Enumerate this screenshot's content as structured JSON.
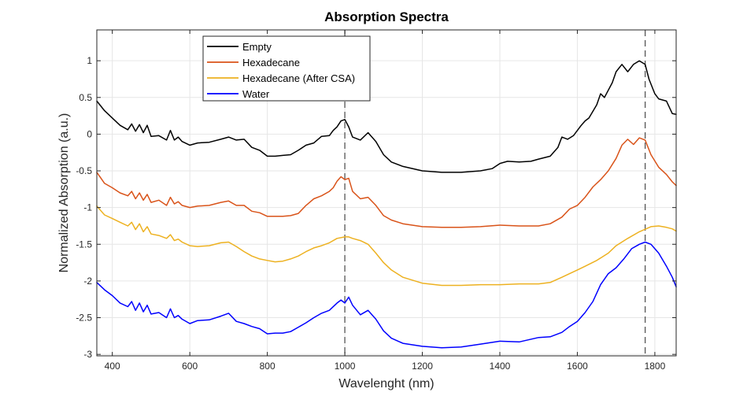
{
  "chart_data": {
    "type": "line",
    "title": "Absorption Spectra",
    "xlabel": "Wavelenght (nm)",
    "ylabel": "Normalized Absorption (a.u.)",
    "xlim": [
      360,
      1855
    ],
    "ylim": [
      -3.02,
      1.42
    ],
    "xticks": [
      400,
      600,
      800,
      1000,
      1200,
      1400,
      1600,
      1800
    ],
    "yticks": [
      1,
      0.5,
      0,
      -0.5,
      -1,
      -1.5,
      -2,
      -2.5,
      -3
    ],
    "xtick_labels": [
      "400",
      "600",
      "800",
      "1000",
      "1200",
      "1400",
      "1600",
      "1800"
    ],
    "ytick_labels": [
      "1",
      "0.5",
      "0",
      "-0.5",
      "-1",
      "-1.5",
      "-2",
      "-2.5",
      "-3"
    ],
    "grid": true,
    "legend_position": "top-left",
    "reference_lines_x": [
      1000,
      1775
    ],
    "series": [
      {
        "name": "Empty",
        "color": "#000000",
        "points": [
          [
            360,
            0.45
          ],
          [
            380,
            0.32
          ],
          [
            400,
            0.22
          ],
          [
            420,
            0.12
          ],
          [
            440,
            0.06
          ],
          [
            450,
            0.14
          ],
          [
            460,
            0.04
          ],
          [
            470,
            0.13
          ],
          [
            480,
            0.02
          ],
          [
            490,
            0.12
          ],
          [
            500,
            -0.03
          ],
          [
            520,
            -0.02
          ],
          [
            540,
            -0.08
          ],
          [
            550,
            0.05
          ],
          [
            560,
            -0.08
          ],
          [
            570,
            -0.04
          ],
          [
            580,
            -0.1
          ],
          [
            600,
            -0.15
          ],
          [
            620,
            -0.12
          ],
          [
            650,
            -0.11
          ],
          [
            680,
            -0.07
          ],
          [
            700,
            -0.04
          ],
          [
            720,
            -0.08
          ],
          [
            740,
            -0.07
          ],
          [
            760,
            -0.18
          ],
          [
            780,
            -0.22
          ],
          [
            800,
            -0.3
          ],
          [
            820,
            -0.3
          ],
          [
            840,
            -0.29
          ],
          [
            860,
            -0.28
          ],
          [
            880,
            -0.22
          ],
          [
            900,
            -0.15
          ],
          [
            920,
            -0.12
          ],
          [
            940,
            -0.03
          ],
          [
            960,
            -0.02
          ],
          [
            970,
            0.05
          ],
          [
            980,
            0.1
          ],
          [
            990,
            0.18
          ],
          [
            1000,
            0.2
          ],
          [
            1010,
            0.1
          ],
          [
            1020,
            -0.04
          ],
          [
            1040,
            -0.08
          ],
          [
            1060,
            0.02
          ],
          [
            1080,
            -0.1
          ],
          [
            1100,
            -0.28
          ],
          [
            1120,
            -0.38
          ],
          [
            1150,
            -0.44
          ],
          [
            1200,
            -0.5
          ],
          [
            1250,
            -0.52
          ],
          [
            1300,
            -0.52
          ],
          [
            1350,
            -0.5
          ],
          [
            1380,
            -0.47
          ],
          [
            1400,
            -0.4
          ],
          [
            1420,
            -0.37
          ],
          [
            1450,
            -0.38
          ],
          [
            1480,
            -0.37
          ],
          [
            1500,
            -0.34
          ],
          [
            1530,
            -0.3
          ],
          [
            1550,
            -0.18
          ],
          [
            1560,
            -0.04
          ],
          [
            1575,
            -0.07
          ],
          [
            1590,
            -0.02
          ],
          [
            1600,
            0.05
          ],
          [
            1610,
            0.12
          ],
          [
            1620,
            0.18
          ],
          [
            1630,
            0.22
          ],
          [
            1650,
            0.4
          ],
          [
            1660,
            0.55
          ],
          [
            1670,
            0.5
          ],
          [
            1690,
            0.7
          ],
          [
            1700,
            0.85
          ],
          [
            1715,
            0.95
          ],
          [
            1730,
            0.85
          ],
          [
            1745,
            0.95
          ],
          [
            1760,
            1.0
          ],
          [
            1775,
            0.95
          ],
          [
            1785,
            0.75
          ],
          [
            1800,
            0.55
          ],
          [
            1810,
            0.48
          ],
          [
            1830,
            0.45
          ],
          [
            1845,
            0.28
          ],
          [
            1855,
            0.27
          ]
        ]
      },
      {
        "name": "Hexadecane",
        "color": "#D95319",
        "points": [
          [
            360,
            -0.52
          ],
          [
            380,
            -0.67
          ],
          [
            400,
            -0.73
          ],
          [
            420,
            -0.8
          ],
          [
            440,
            -0.84
          ],
          [
            450,
            -0.78
          ],
          [
            460,
            -0.88
          ],
          [
            470,
            -0.8
          ],
          [
            480,
            -0.9
          ],
          [
            490,
            -0.82
          ],
          [
            500,
            -0.93
          ],
          [
            520,
            -0.9
          ],
          [
            540,
            -0.97
          ],
          [
            550,
            -0.86
          ],
          [
            560,
            -0.95
          ],
          [
            570,
            -0.92
          ],
          [
            580,
            -0.97
          ],
          [
            600,
            -1.0
          ],
          [
            620,
            -0.98
          ],
          [
            650,
            -0.97
          ],
          [
            680,
            -0.93
          ],
          [
            700,
            -0.91
          ],
          [
            720,
            -0.97
          ],
          [
            740,
            -0.97
          ],
          [
            760,
            -1.05
          ],
          [
            780,
            -1.07
          ],
          [
            800,
            -1.12
          ],
          [
            820,
            -1.12
          ],
          [
            840,
            -1.12
          ],
          [
            860,
            -1.11
          ],
          [
            880,
            -1.08
          ],
          [
            900,
            -0.97
          ],
          [
            920,
            -0.88
          ],
          [
            940,
            -0.84
          ],
          [
            960,
            -0.78
          ],
          [
            970,
            -0.73
          ],
          [
            980,
            -0.64
          ],
          [
            990,
            -0.58
          ],
          [
            1000,
            -0.62
          ],
          [
            1010,
            -0.6
          ],
          [
            1020,
            -0.78
          ],
          [
            1040,
            -0.88
          ],
          [
            1060,
            -0.86
          ],
          [
            1080,
            -0.97
          ],
          [
            1100,
            -1.11
          ],
          [
            1120,
            -1.17
          ],
          [
            1150,
            -1.22
          ],
          [
            1200,
            -1.26
          ],
          [
            1250,
            -1.27
          ],
          [
            1300,
            -1.27
          ],
          [
            1350,
            -1.26
          ],
          [
            1400,
            -1.24
          ],
          [
            1450,
            -1.25
          ],
          [
            1500,
            -1.25
          ],
          [
            1530,
            -1.22
          ],
          [
            1560,
            -1.13
          ],
          [
            1580,
            -1.02
          ],
          [
            1600,
            -0.97
          ],
          [
            1620,
            -0.86
          ],
          [
            1640,
            -0.72
          ],
          [
            1660,
            -0.62
          ],
          [
            1680,
            -0.5
          ],
          [
            1700,
            -0.33
          ],
          [
            1715,
            -0.15
          ],
          [
            1730,
            -0.07
          ],
          [
            1745,
            -0.14
          ],
          [
            1760,
            -0.05
          ],
          [
            1775,
            -0.08
          ],
          [
            1790,
            -0.28
          ],
          [
            1810,
            -0.45
          ],
          [
            1830,
            -0.55
          ],
          [
            1845,
            -0.65
          ],
          [
            1855,
            -0.7
          ]
        ]
      },
      {
        "name": "Hexadecane (After CSA)",
        "color": "#EDB120",
        "points": [
          [
            360,
            -0.98
          ],
          [
            380,
            -1.1
          ],
          [
            400,
            -1.15
          ],
          [
            420,
            -1.2
          ],
          [
            440,
            -1.25
          ],
          [
            450,
            -1.2
          ],
          [
            460,
            -1.3
          ],
          [
            470,
            -1.22
          ],
          [
            480,
            -1.33
          ],
          [
            490,
            -1.26
          ],
          [
            500,
            -1.36
          ],
          [
            520,
            -1.38
          ],
          [
            540,
            -1.42
          ],
          [
            550,
            -1.37
          ],
          [
            560,
            -1.45
          ],
          [
            570,
            -1.43
          ],
          [
            580,
            -1.47
          ],
          [
            600,
            -1.52
          ],
          [
            620,
            -1.53
          ],
          [
            650,
            -1.52
          ],
          [
            680,
            -1.48
          ],
          [
            700,
            -1.47
          ],
          [
            720,
            -1.53
          ],
          [
            740,
            -1.6
          ],
          [
            760,
            -1.66
          ],
          [
            780,
            -1.7
          ],
          [
            800,
            -1.72
          ],
          [
            820,
            -1.74
          ],
          [
            840,
            -1.73
          ],
          [
            860,
            -1.7
          ],
          [
            880,
            -1.66
          ],
          [
            900,
            -1.6
          ],
          [
            920,
            -1.55
          ],
          [
            940,
            -1.52
          ],
          [
            960,
            -1.48
          ],
          [
            980,
            -1.42
          ],
          [
            1000,
            -1.4
          ],
          [
            1010,
            -1.4
          ],
          [
            1020,
            -1.42
          ],
          [
            1040,
            -1.45
          ],
          [
            1060,
            -1.5
          ],
          [
            1080,
            -1.62
          ],
          [
            1100,
            -1.75
          ],
          [
            1120,
            -1.85
          ],
          [
            1150,
            -1.95
          ],
          [
            1200,
            -2.03
          ],
          [
            1250,
            -2.06
          ],
          [
            1300,
            -2.06
          ],
          [
            1350,
            -2.05
          ],
          [
            1400,
            -2.05
          ],
          [
            1450,
            -2.04
          ],
          [
            1500,
            -2.04
          ],
          [
            1530,
            -2.02
          ],
          [
            1560,
            -1.95
          ],
          [
            1580,
            -1.9
          ],
          [
            1600,
            -1.85
          ],
          [
            1620,
            -1.8
          ],
          [
            1650,
            -1.72
          ],
          [
            1680,
            -1.62
          ],
          [
            1700,
            -1.52
          ],
          [
            1730,
            -1.42
          ],
          [
            1760,
            -1.33
          ],
          [
            1790,
            -1.26
          ],
          [
            1810,
            -1.25
          ],
          [
            1830,
            -1.27
          ],
          [
            1845,
            -1.29
          ],
          [
            1855,
            -1.32
          ]
        ]
      },
      {
        "name": "Water",
        "color": "#0000FF",
        "points": [
          [
            360,
            -2.02
          ],
          [
            380,
            -2.12
          ],
          [
            400,
            -2.2
          ],
          [
            420,
            -2.3
          ],
          [
            440,
            -2.35
          ],
          [
            450,
            -2.28
          ],
          [
            460,
            -2.4
          ],
          [
            470,
            -2.3
          ],
          [
            480,
            -2.42
          ],
          [
            490,
            -2.33
          ],
          [
            500,
            -2.45
          ],
          [
            520,
            -2.43
          ],
          [
            540,
            -2.5
          ],
          [
            550,
            -2.38
          ],
          [
            560,
            -2.5
          ],
          [
            570,
            -2.47
          ],
          [
            580,
            -2.52
          ],
          [
            600,
            -2.58
          ],
          [
            620,
            -2.54
          ],
          [
            650,
            -2.53
          ],
          [
            680,
            -2.48
          ],
          [
            700,
            -2.44
          ],
          [
            720,
            -2.55
          ],
          [
            740,
            -2.58
          ],
          [
            760,
            -2.62
          ],
          [
            780,
            -2.65
          ],
          [
            800,
            -2.72
          ],
          [
            820,
            -2.71
          ],
          [
            840,
            -2.71
          ],
          [
            860,
            -2.69
          ],
          [
            880,
            -2.63
          ],
          [
            900,
            -2.57
          ],
          [
            920,
            -2.5
          ],
          [
            940,
            -2.44
          ],
          [
            960,
            -2.4
          ],
          [
            980,
            -2.3
          ],
          [
            990,
            -2.26
          ],
          [
            1000,
            -2.3
          ],
          [
            1010,
            -2.22
          ],
          [
            1020,
            -2.33
          ],
          [
            1040,
            -2.46
          ],
          [
            1060,
            -2.4
          ],
          [
            1080,
            -2.52
          ],
          [
            1100,
            -2.68
          ],
          [
            1120,
            -2.78
          ],
          [
            1150,
            -2.85
          ],
          [
            1200,
            -2.89
          ],
          [
            1250,
            -2.91
          ],
          [
            1300,
            -2.9
          ],
          [
            1350,
            -2.86
          ],
          [
            1400,
            -2.82
          ],
          [
            1450,
            -2.83
          ],
          [
            1500,
            -2.77
          ],
          [
            1530,
            -2.76
          ],
          [
            1560,
            -2.7
          ],
          [
            1580,
            -2.62
          ],
          [
            1600,
            -2.55
          ],
          [
            1620,
            -2.43
          ],
          [
            1640,
            -2.28
          ],
          [
            1660,
            -2.05
          ],
          [
            1680,
            -1.9
          ],
          [
            1700,
            -1.82
          ],
          [
            1720,
            -1.7
          ],
          [
            1740,
            -1.56
          ],
          [
            1760,
            -1.5
          ],
          [
            1775,
            -1.47
          ],
          [
            1790,
            -1.5
          ],
          [
            1810,
            -1.62
          ],
          [
            1830,
            -1.8
          ],
          [
            1845,
            -1.95
          ],
          [
            1855,
            -2.08
          ]
        ]
      }
    ]
  }
}
